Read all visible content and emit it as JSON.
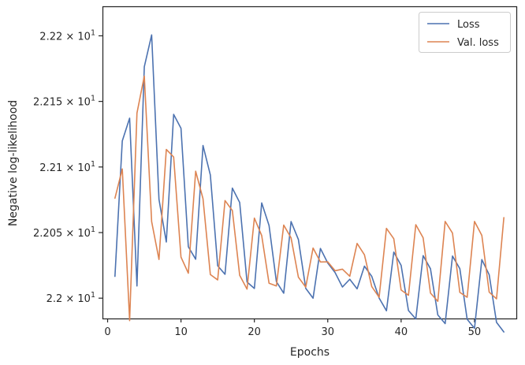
{
  "chart_data": {
    "type": "line",
    "title": "",
    "xlabel": "Epochs",
    "ylabel": "Negative log-likelihood",
    "xlim": [
      -0.7,
      55.7
    ],
    "ylim": [
      21.9845,
      22.2225
    ],
    "grid": false,
    "legend_position": "top-right",
    "x_ticks": [
      0,
      10,
      20,
      30,
      40,
      50
    ],
    "x_tick_labels": [
      "0",
      "10",
      "20",
      "30",
      "40",
      "50"
    ],
    "y_ticks": [
      22.0,
      22.05,
      22.1,
      22.15,
      22.2
    ],
    "y_tick_labels": [
      {
        "mantissa": "2.2",
        "exp": "1"
      },
      {
        "mantissa": "2.205",
        "exp": "1"
      },
      {
        "mantissa": "2.21",
        "exp": "1"
      },
      {
        "mantissa": "2.215",
        "exp": "1"
      },
      {
        "mantissa": "2.22",
        "exp": "1"
      }
    ],
    "x": [
      1,
      2,
      3,
      4,
      5,
      6,
      7,
      8,
      9,
      10,
      11,
      12,
      13,
      14,
      15,
      16,
      17,
      18,
      19,
      20,
      21,
      22,
      23,
      24,
      25,
      26,
      27,
      28,
      29,
      30,
      31,
      32,
      33,
      34,
      35,
      36,
      37,
      38,
      39,
      40,
      41,
      42,
      43,
      44,
      45,
      46,
      47,
      48,
      49,
      50,
      51,
      52,
      53,
      54
    ],
    "series": [
      {
        "name": "Loss",
        "color": "#4c72b0",
        "values": [
          22.0166,
          22.1199,
          22.1372,
          22.0093,
          22.1764,
          22.2007,
          22.0753,
          22.0428,
          22.1401,
          22.1295,
          22.0392,
          22.0297,
          22.1164,
          22.0939,
          22.0247,
          22.0182,
          22.0839,
          22.0729,
          22.0123,
          22.0074,
          22.0726,
          22.0554,
          22.0126,
          22.0038,
          22.0584,
          22.0447,
          22.0075,
          22.0,
          22.0379,
          22.0268,
          22.0195,
          22.0085,
          22.0144,
          22.0071,
          22.0244,
          22.0166,
          22.0001,
          21.9904,
          22.0351,
          22.025,
          21.9906,
          21.9842,
          22.0324,
          22.0224,
          21.9872,
          21.9806,
          22.0321,
          22.0225,
          21.9839,
          21.977,
          22.0294,
          22.0179,
          21.9816,
          21.9742
        ]
      },
      {
        "name": "Val. loss",
        "color": "#dd8452",
        "values": [
          22.0762,
          22.0985,
          21.9829,
          22.1411,
          22.1693,
          22.0584,
          22.0295,
          22.1134,
          22.1076,
          22.0313,
          22.019,
          22.0968,
          22.0758,
          22.018,
          22.0139,
          22.0744,
          22.0668,
          22.0174,
          22.0069,
          22.061,
          22.0477,
          22.0114,
          22.0093,
          22.0557,
          22.046,
          22.016,
          22.0084,
          22.0382,
          22.0276,
          22.0277,
          22.0209,
          22.0221,
          22.0167,
          22.0417,
          22.0331,
          22.0088,
          22.0007,
          22.0532,
          22.0453,
          22.0062,
          22.0022,
          22.056,
          22.046,
          22.0039,
          21.9976,
          22.0585,
          22.0496,
          22.0044,
          22.0007,
          22.0585,
          22.0478,
          22.0046,
          21.9995,
          22.0614
        ]
      }
    ]
  }
}
